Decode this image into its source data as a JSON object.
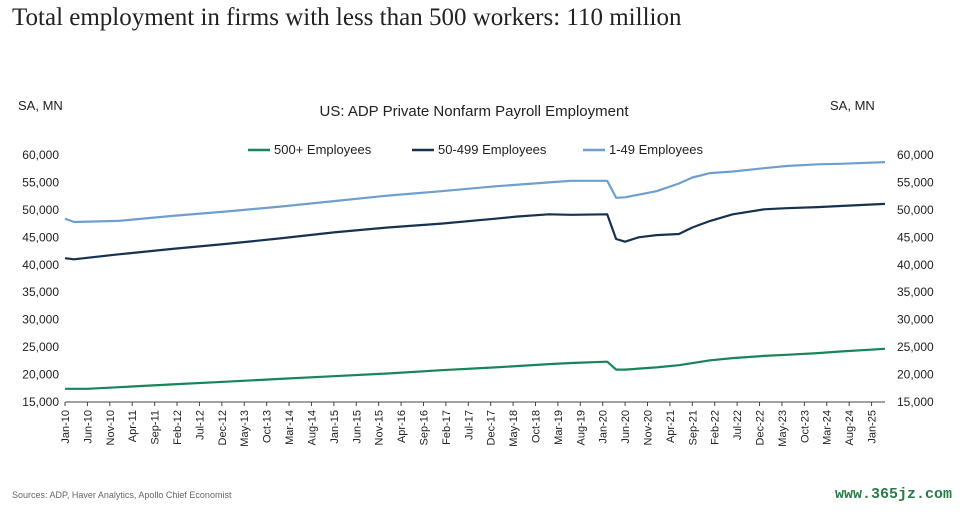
{
  "headline": "Total employment in firms with less than 500 workers: 110 million",
  "sources": "Sources: ADP, Haver Analytics, Apollo Chief Economist",
  "watermark": "www.365jz.com",
  "chart_data": {
    "type": "line",
    "title": "US: ADP Private Nonfarm Payroll Employment",
    "left_axis_label": "SA, MN",
    "right_axis_label": "SA, MN",
    "ylim": [
      15000,
      60000
    ],
    "yticks": [
      15000,
      20000,
      25000,
      30000,
      35000,
      40000,
      45000,
      50000,
      55000,
      60000
    ],
    "ytick_labels": [
      "15,000",
      "20,000",
      "25,000",
      "30,000",
      "35,000",
      "40,000",
      "45,000",
      "50,000",
      "55,000",
      "60,000"
    ],
    "x_start": "2010-01",
    "x_end": "2025-04",
    "x_tick_labels": [
      "Jan-10",
      "Jun-10",
      "Nov-10",
      "Apr-11",
      "Sep-11",
      "Feb-12",
      "Jul-12",
      "Dec-12",
      "May-13",
      "Oct-13",
      "Mar-14",
      "Aug-14",
      "Jan-15",
      "Jun-15",
      "Nov-15",
      "Apr-16",
      "Sep-16",
      "Feb-17",
      "Jul-17",
      "Dec-17",
      "May-18",
      "Oct-18",
      "Mar-19",
      "Aug-19",
      "Jan-20",
      "Jun-20",
      "Nov-20",
      "Apr-21",
      "Sep-21",
      "Feb-22",
      "Jul-22",
      "Dec-22",
      "May-23",
      "Oct-23",
      "Mar-24",
      "Aug-24",
      "Jan-25"
    ],
    "grid": false,
    "legend_position": "top",
    "series": [
      {
        "name": "500+ Employees",
        "color": "#17845a",
        "points": [
          [
            "2010-01",
            17400
          ],
          [
            "2010-06",
            17400
          ],
          [
            "2011-01",
            17700
          ],
          [
            "2012-01",
            18200
          ],
          [
            "2013-01",
            18700
          ],
          [
            "2014-01",
            19200
          ],
          [
            "2015-01",
            19700
          ],
          [
            "2016-01",
            20200
          ],
          [
            "2017-01",
            20800
          ],
          [
            "2018-01",
            21300
          ],
          [
            "2019-01",
            21900
          ],
          [
            "2019-06",
            22100
          ],
          [
            "2020-02",
            22350
          ],
          [
            "2020-04",
            20900
          ],
          [
            "2020-06",
            20900
          ],
          [
            "2021-01",
            21300
          ],
          [
            "2021-06",
            21700
          ],
          [
            "2022-01",
            22600
          ],
          [
            "2022-06",
            23000
          ],
          [
            "2023-01",
            23400
          ],
          [
            "2023-06",
            23600
          ],
          [
            "2024-01",
            23900
          ],
          [
            "2024-06",
            24200
          ],
          [
            "2025-04",
            24700
          ]
        ]
      },
      {
        "name": "50-499 Employees",
        "color": "#16324f",
        "points": [
          [
            "2010-01",
            41200
          ],
          [
            "2010-03",
            41000
          ],
          [
            "2011-01",
            41900
          ],
          [
            "2012-01",
            42900
          ],
          [
            "2013-01",
            43800
          ],
          [
            "2014-01",
            44800
          ],
          [
            "2015-01",
            45900
          ],
          [
            "2016-01",
            46800
          ],
          [
            "2017-01",
            47500
          ],
          [
            "2018-01",
            48400
          ],
          [
            "2018-06",
            48800
          ],
          [
            "2019-01",
            49200
          ],
          [
            "2019-06",
            49100
          ],
          [
            "2020-02",
            49200
          ],
          [
            "2020-04",
            44700
          ],
          [
            "2020-06",
            44200
          ],
          [
            "2020-09",
            45000
          ],
          [
            "2021-01",
            45400
          ],
          [
            "2021-06",
            45600
          ],
          [
            "2021-09",
            46800
          ],
          [
            "2022-01",
            48000
          ],
          [
            "2022-06",
            49200
          ],
          [
            "2023-01",
            50100
          ],
          [
            "2023-06",
            50300
          ],
          [
            "2024-01",
            50500
          ],
          [
            "2024-06",
            50700
          ],
          [
            "2025-04",
            51100
          ]
        ]
      },
      {
        "name": "1-49 Employees",
        "color": "#6f9fcc",
        "points": [
          [
            "2010-01",
            48400
          ],
          [
            "2010-03",
            47800
          ],
          [
            "2011-01",
            48000
          ],
          [
            "2012-01",
            48900
          ],
          [
            "2013-01",
            49700
          ],
          [
            "2014-01",
            50600
          ],
          [
            "2015-01",
            51600
          ],
          [
            "2016-01",
            52600
          ],
          [
            "2017-01",
            53400
          ],
          [
            "2018-01",
            54300
          ],
          [
            "2019-01",
            55000
          ],
          [
            "2019-06",
            55300
          ],
          [
            "2020-02",
            55300
          ],
          [
            "2020-04",
            52200
          ],
          [
            "2020-06",
            52300
          ],
          [
            "2021-01",
            53400
          ],
          [
            "2021-06",
            54800
          ],
          [
            "2021-09",
            55900
          ],
          [
            "2022-01",
            56700
          ],
          [
            "2022-06",
            57000
          ],
          [
            "2023-01",
            57600
          ],
          [
            "2023-06",
            58000
          ],
          [
            "2024-01",
            58300
          ],
          [
            "2024-06",
            58400
          ],
          [
            "2025-04",
            58700
          ]
        ]
      }
    ]
  }
}
